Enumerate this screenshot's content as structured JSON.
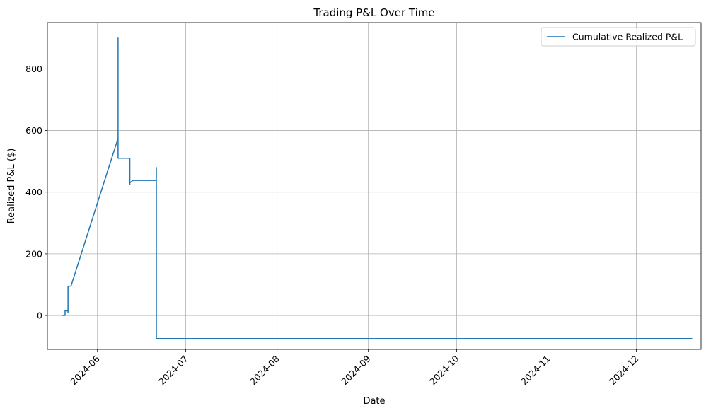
{
  "chart_data": {
    "type": "line",
    "title": "Trading P&L Over Time",
    "xlabel": "Date",
    "ylabel": "Realized P&L ($)",
    "x_axis_type": "date",
    "xlim": [
      "2024-05-15",
      "2024-12-23"
    ],
    "ylim": [
      -110,
      950
    ],
    "x_ticks": [
      "2024-06-01",
      "2024-07-01",
      "2024-08-01",
      "2024-09-01",
      "2024-10-01",
      "2024-11-01",
      "2024-12-01"
    ],
    "x_tick_labels": [
      "2024-06",
      "2024-07",
      "2024-08",
      "2024-09",
      "2024-10",
      "2024-11",
      "2024-12"
    ],
    "y_ticks": [
      0,
      200,
      400,
      600,
      800
    ],
    "y_tick_labels": [
      "0",
      "200",
      "400",
      "600",
      "800"
    ],
    "grid": true,
    "legend_position": "top-right",
    "series": [
      {
        "name": "Cumulative Realized P&L",
        "color": "#1f77b4",
        "x": [
          "2024-05-20",
          "2024-05-21",
          "2024-05-21",
          "2024-05-22",
          "2024-05-22",
          "2024-05-22",
          "2024-05-22",
          "2024-05-23",
          "2024-06-08",
          "2024-06-08",
          "2024-06-08",
          "2024-06-08",
          "2024-06-12",
          "2024-06-12",
          "2024-06-12",
          "2024-06-13",
          "2024-06-21",
          "2024-06-21",
          "2024-06-21",
          "2024-06-21",
          "2024-12-20"
        ],
        "y": [
          0,
          0,
          15,
          15,
          10,
          90,
          95,
          95,
          575,
          900,
          510,
          510,
          510,
          425,
          430,
          438,
          438,
          480,
          440,
          -75,
          -75
        ]
      }
    ]
  }
}
